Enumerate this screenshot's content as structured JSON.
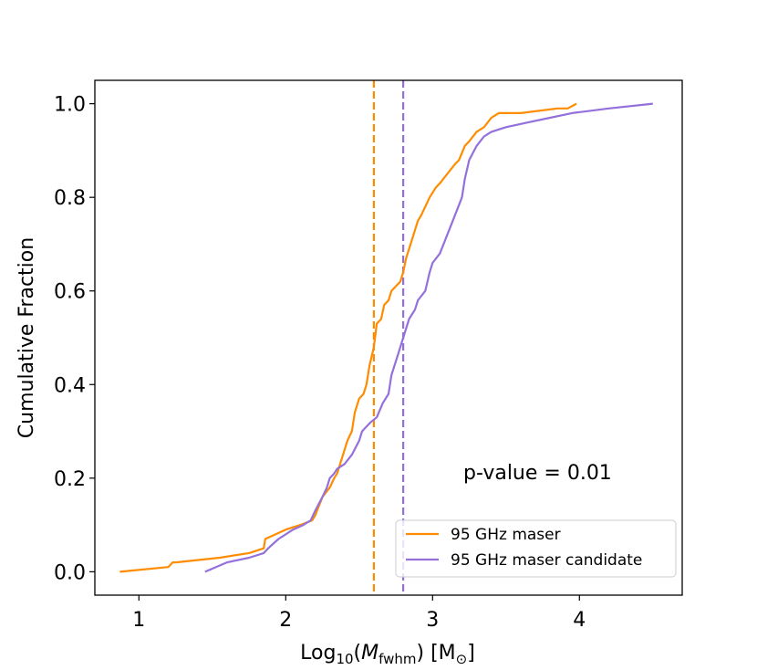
{
  "chart_data": {
    "type": "line",
    "xlabel_prefix": "Log",
    "xlabel_sub": "10",
    "xlabel_var": "M",
    "xlabel_var_sub": "fwhm",
    "xlabel_units": "[M",
    "xlabel_units_sym": "⊙",
    "xlabel_close": "]",
    "ylabel": "Cumulative Fraction",
    "xlim": [
      0.7,
      4.7
    ],
    "ylim": [
      -0.05,
      1.05
    ],
    "xticks": [
      1,
      2,
      3,
      4
    ],
    "yticks": [
      0.0,
      0.2,
      0.4,
      0.6,
      0.8,
      1.0
    ],
    "xtick_labels": [
      "1",
      "2",
      "3",
      "4"
    ],
    "ytick_labels": [
      "0.0",
      "0.2",
      "0.4",
      "0.6",
      "0.8",
      "1.0"
    ],
    "annotation": "p-value = 0.01",
    "legend_position": "lower-right",
    "grid": false,
    "series": [
      {
        "name": "95 GHz maser",
        "color": "#ff8c00",
        "median": 2.6,
        "x": [
          0.87,
          1.2,
          1.23,
          1.25,
          1.55,
          1.75,
          1.85,
          1.86,
          2.0,
          2.1,
          2.18,
          2.2,
          2.25,
          2.3,
          2.33,
          2.35,
          2.38,
          2.4,
          2.42,
          2.45,
          2.47,
          2.5,
          2.53,
          2.55,
          2.57,
          2.6,
          2.62,
          2.65,
          2.67,
          2.7,
          2.72,
          2.75,
          2.78,
          2.8,
          2.82,
          2.85,
          2.88,
          2.9,
          2.92,
          2.95,
          2.98,
          3.0,
          3.02,
          3.05,
          3.1,
          3.15,
          3.18,
          3.22,
          3.25,
          3.3,
          3.35,
          3.4,
          3.45,
          3.6,
          3.85,
          3.92,
          3.98
        ],
        "y": [
          0.0,
          0.01,
          0.02,
          0.02,
          0.03,
          0.04,
          0.05,
          0.07,
          0.09,
          0.1,
          0.11,
          0.12,
          0.16,
          0.18,
          0.2,
          0.21,
          0.24,
          0.26,
          0.28,
          0.3,
          0.34,
          0.37,
          0.38,
          0.4,
          0.44,
          0.48,
          0.53,
          0.54,
          0.57,
          0.58,
          0.6,
          0.61,
          0.62,
          0.64,
          0.67,
          0.7,
          0.73,
          0.75,
          0.76,
          0.78,
          0.8,
          0.81,
          0.82,
          0.83,
          0.85,
          0.87,
          0.88,
          0.91,
          0.92,
          0.94,
          0.95,
          0.97,
          0.98,
          0.98,
          0.99,
          0.99,
          1.0
        ]
      },
      {
        "name": "95 GHz maser candidate",
        "color": "#9370db",
        "median": 2.8,
        "x": [
          1.45,
          1.6,
          1.75,
          1.85,
          1.88,
          1.95,
          2.05,
          2.12,
          2.17,
          2.2,
          2.25,
          2.28,
          2.3,
          2.33,
          2.35,
          2.4,
          2.45,
          2.5,
          2.52,
          2.55,
          2.58,
          2.62,
          2.66,
          2.7,
          2.72,
          2.74,
          2.76,
          2.78,
          2.8,
          2.84,
          2.88,
          2.9,
          2.95,
          2.98,
          3.0,
          3.05,
          3.1,
          3.15,
          3.2,
          3.22,
          3.25,
          3.3,
          3.35,
          3.4,
          3.5,
          3.65,
          3.8,
          3.95,
          4.2,
          4.5
        ],
        "y": [
          0.0,
          0.02,
          0.03,
          0.04,
          0.05,
          0.07,
          0.09,
          0.1,
          0.11,
          0.13,
          0.16,
          0.18,
          0.2,
          0.21,
          0.22,
          0.23,
          0.25,
          0.28,
          0.3,
          0.31,
          0.32,
          0.33,
          0.36,
          0.38,
          0.42,
          0.44,
          0.46,
          0.48,
          0.5,
          0.54,
          0.56,
          0.58,
          0.6,
          0.64,
          0.66,
          0.68,
          0.72,
          0.76,
          0.8,
          0.84,
          0.88,
          0.91,
          0.93,
          0.94,
          0.95,
          0.96,
          0.97,
          0.98,
          0.99,
          1.0
        ]
      }
    ]
  }
}
